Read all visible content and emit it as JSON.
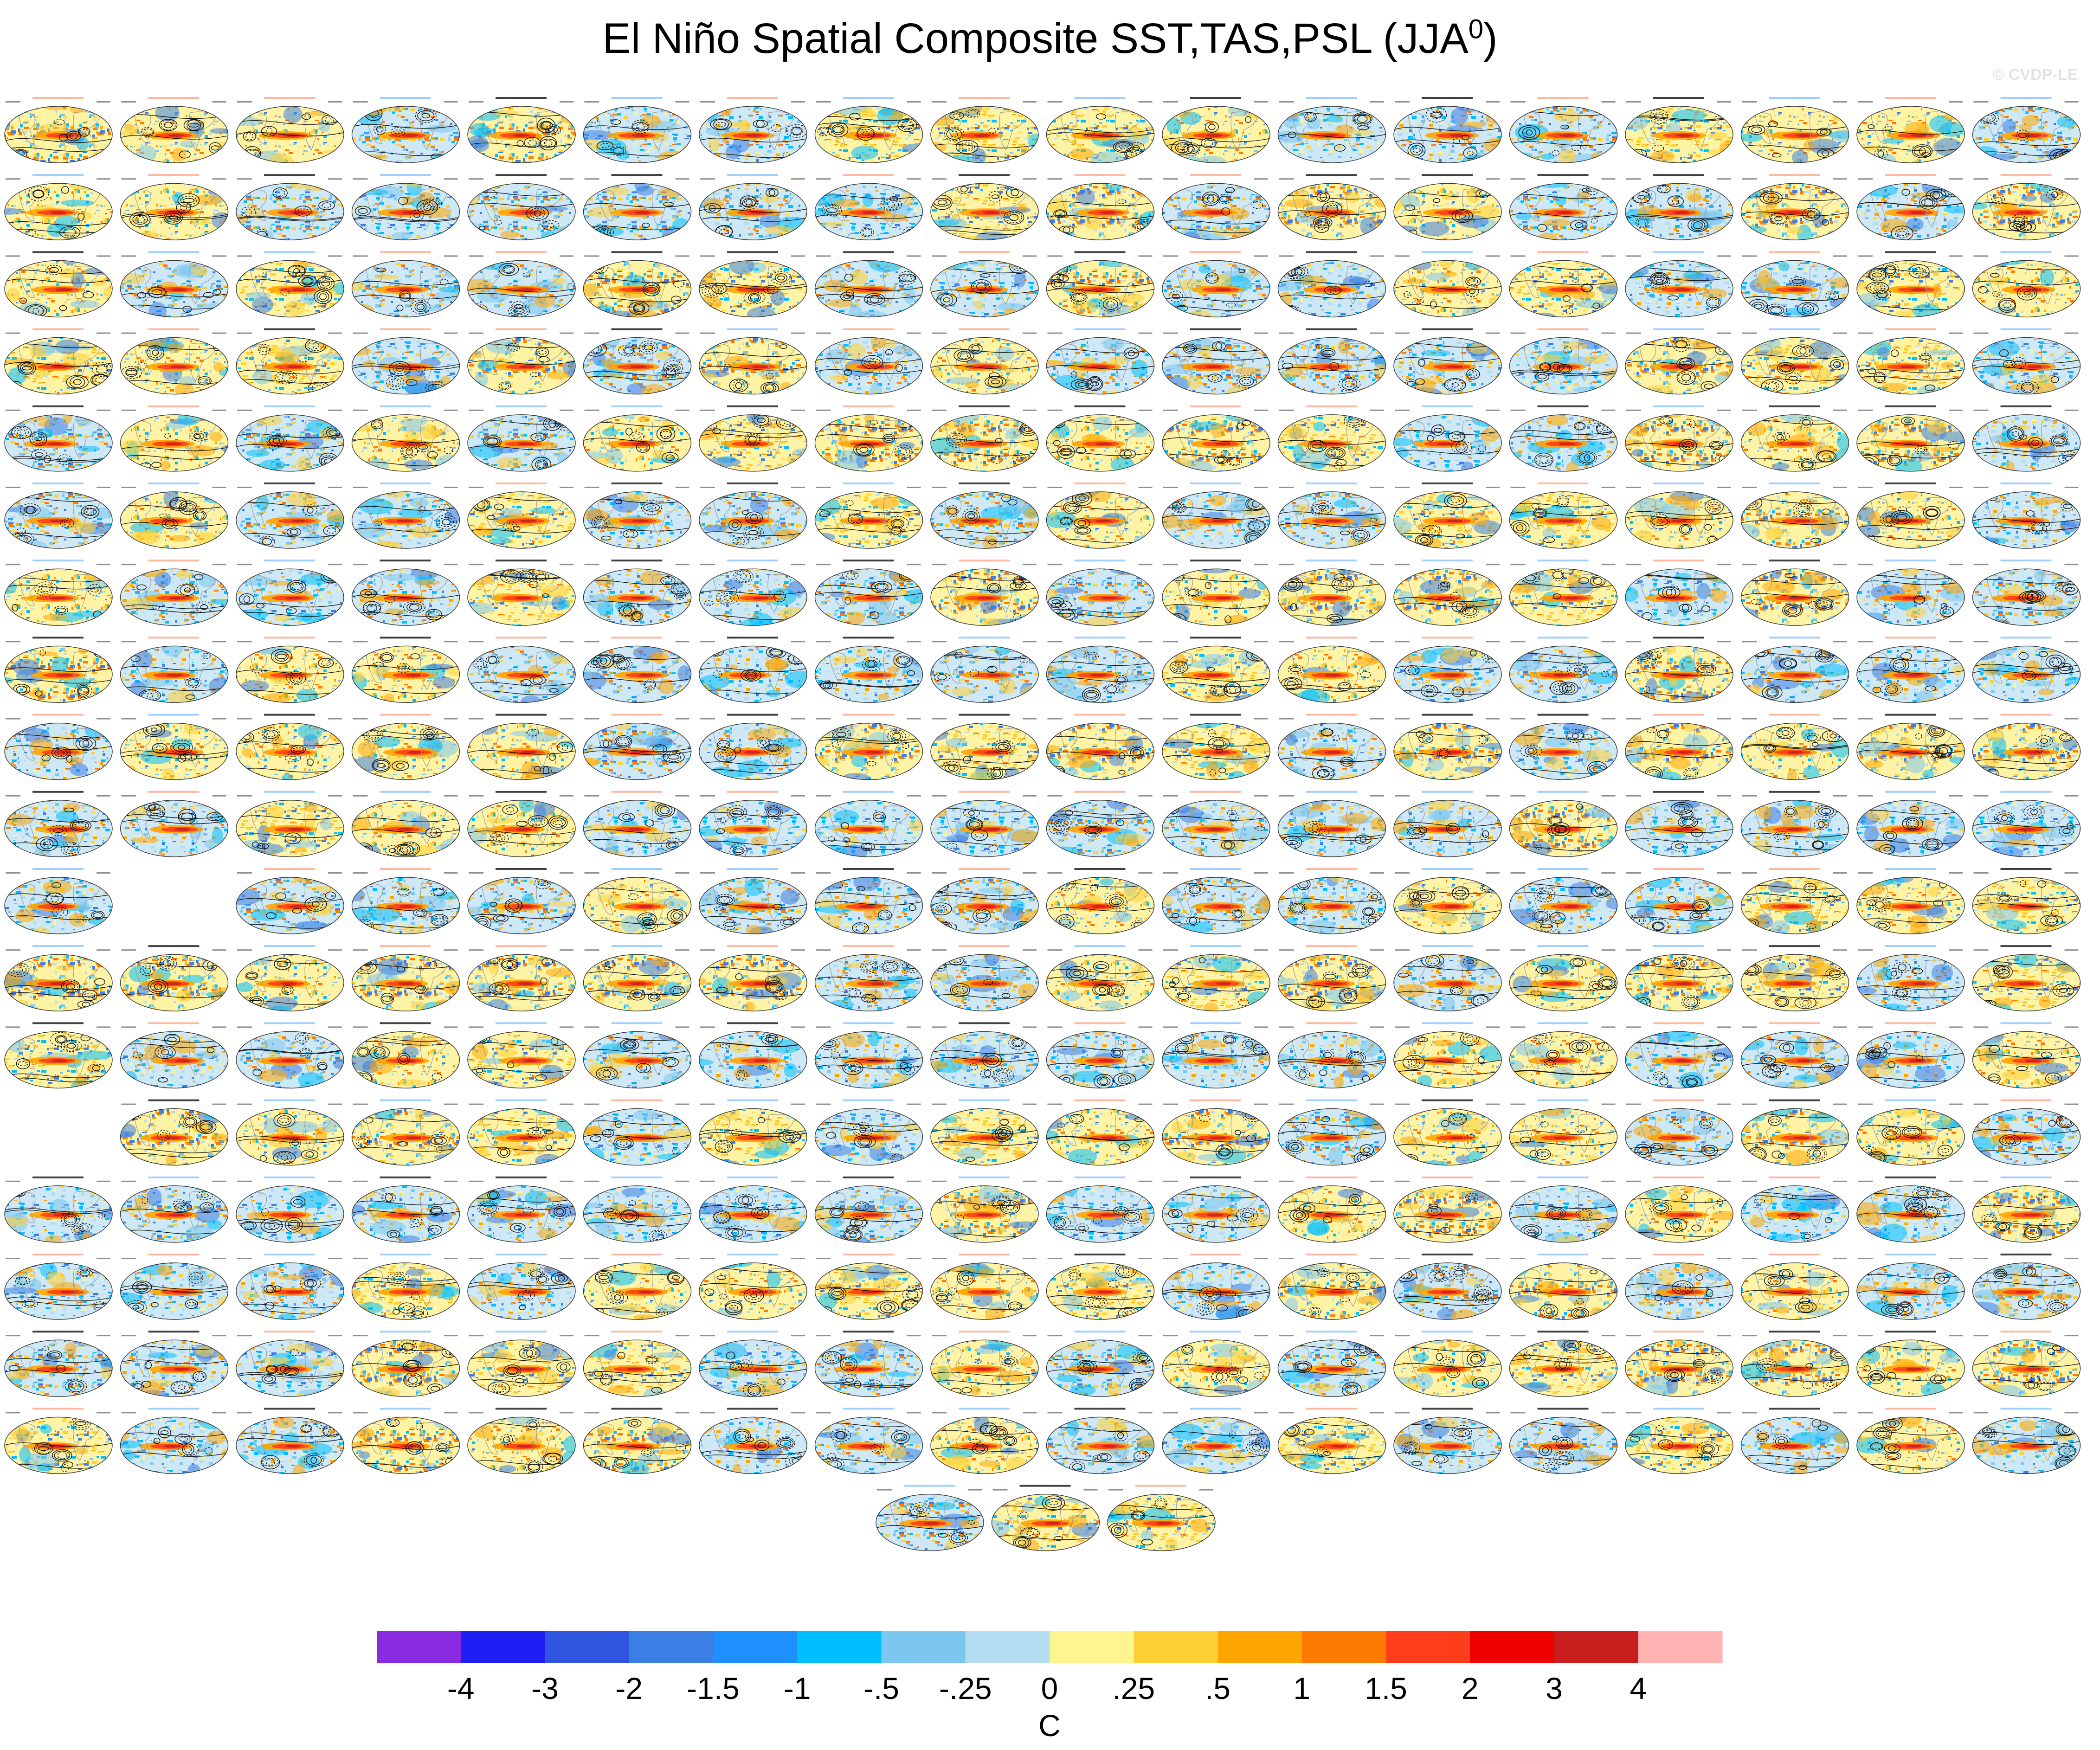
{
  "title": {
    "main": "El Niño Spatial Composite SST,TAS,PSL (JJA",
    "superscript": "0",
    "close": ")"
  },
  "watermark": "© CVDP-LE",
  "chart_data": {
    "type": "heatmap",
    "title": "El Niño Spatial Composite SST,TAS,PSL (JJA0)",
    "description_note": "",
    "panel_rows": [
      18,
      18,
      18,
      18,
      18,
      18,
      18,
      18,
      18,
      18,
      17,
      18,
      18,
      17,
      18,
      18,
      18,
      18,
      3
    ],
    "panel_grid_columns": 18,
    "empty_panel_positions": [
      [
        10,
        1
      ],
      [
        13,
        0
      ]
    ],
    "panel_header_colors": [
      "#000000",
      "#7fbfff",
      "#ff9f7f"
    ],
    "colorbar": {
      "unit": "C",
      "ticks": [
        "-4",
        "-3",
        "-2",
        "-1.5",
        "-1",
        "-.5",
        "-.25",
        "0",
        ".25",
        ".5",
        "1",
        "1.5",
        "2",
        "3",
        "4"
      ],
      "colors": [
        "#8a2be2",
        "#1e1ef5",
        "#2f55e0",
        "#3c7fe4",
        "#1e90ff",
        "#00bfff",
        "#7cc7f0",
        "#b4ddf2",
        "#fff590",
        "#ffd033",
        "#ffa500",
        "#ff7a00",
        "#ff3d1a",
        "#ee0000",
        "#c81e1e",
        "#ffb3b3"
      ]
    }
  }
}
